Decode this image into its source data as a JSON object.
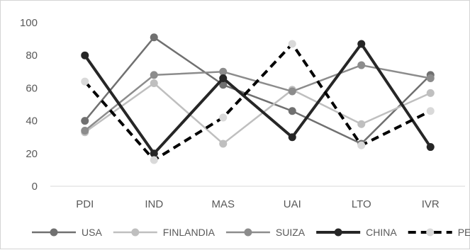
{
  "chart_data": {
    "type": "line",
    "title": "",
    "xlabel": "",
    "ylabel": "",
    "categories": [
      "PDI",
      "IND",
      "MAS",
      "UAI",
      "LTO",
      "IVR"
    ],
    "ylim": [
      0,
      100
    ],
    "yticks": [
      0,
      20,
      40,
      60,
      80,
      100
    ],
    "grid": false,
    "legend_position": "bottom",
    "series": [
      {
        "name": "USA",
        "values": [
          40,
          91,
          62,
          46,
          26,
          68
        ],
        "color": "#707070",
        "dash": false,
        "width": 2.5
      },
      {
        "name": "FINLANDIA",
        "values": [
          33,
          63,
          26,
          59,
          38,
          57
        ],
        "color": "#bfbfbf",
        "dash": false,
        "width": 2.5
      },
      {
        "name": "SUIZA",
        "values": [
          34,
          68,
          70,
          58,
          74,
          66
        ],
        "color": "#8c8c8c",
        "dash": false,
        "width": 2.5
      },
      {
        "name": "CHINA",
        "values": [
          80,
          20,
          66,
          30,
          87,
          24
        ],
        "color": "#262626",
        "dash": false,
        "width": 4
      },
      {
        "name": "PERU",
        "values": [
          64,
          16,
          42,
          87,
          25,
          46
        ],
        "color": "#000000",
        "dash": true,
        "width": 4,
        "marker_color": "#d9d9d9"
      }
    ]
  }
}
